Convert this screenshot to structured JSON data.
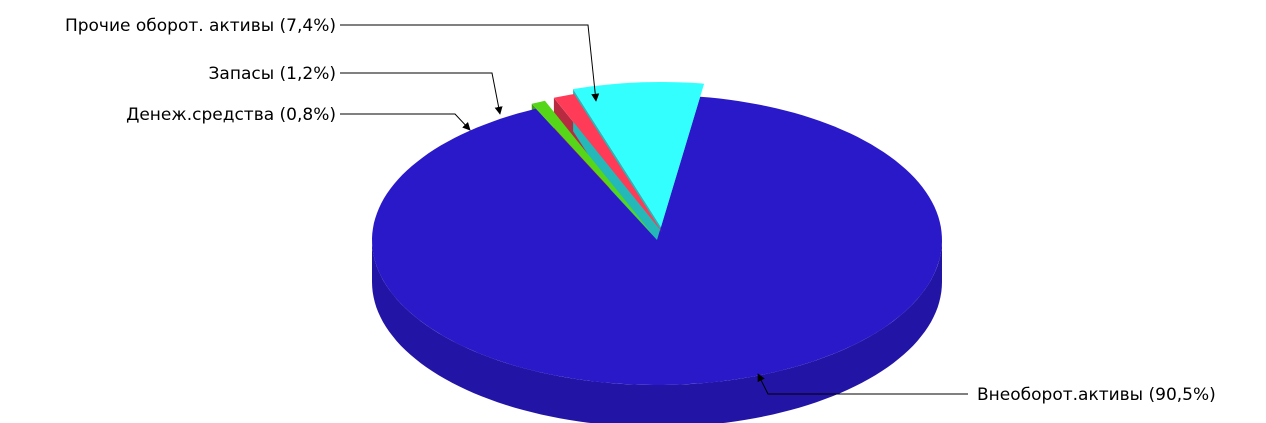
{
  "chart_data": {
    "type": "pie",
    "style": "3d-exploded",
    "legend": "none",
    "slices": [
      {
        "label": "Внеоборот.активы (90,5%)",
        "value": 90.5,
        "color": "#2a19c9"
      },
      {
        "label": "Денеж.средства (0,8%)",
        "value": 0.8,
        "color": "#55d619"
      },
      {
        "label": "Запасы (1,2%)",
        "value": 1.2,
        "color": "#ff3b57"
      },
      {
        "label": "Прочие оборот. активы (7,4%)",
        "value": 7.4,
        "color": "#33ffff"
      }
    ]
  }
}
